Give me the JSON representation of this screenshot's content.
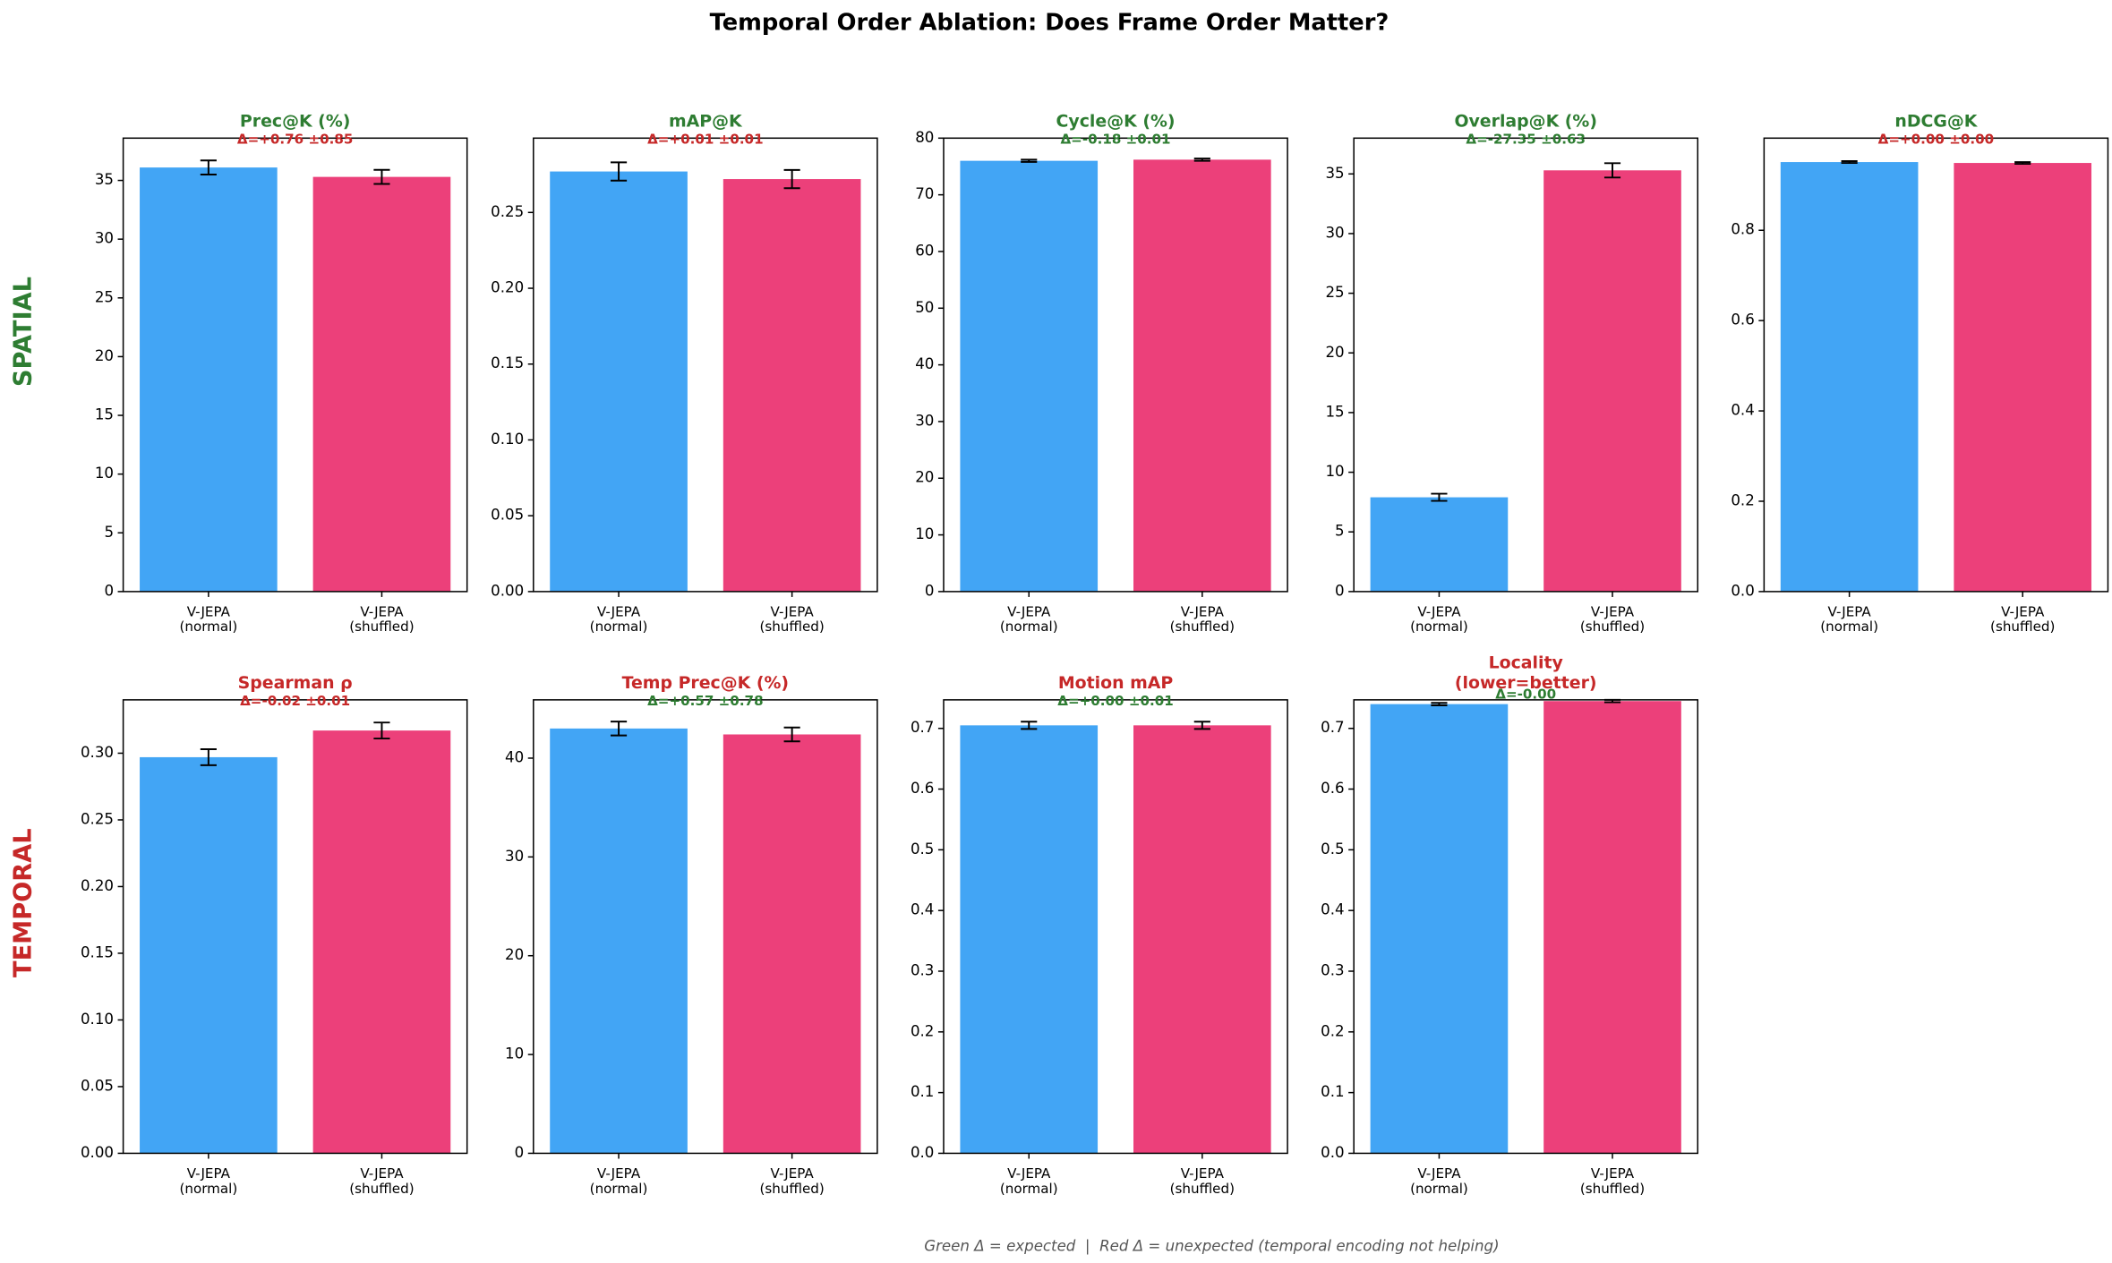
{
  "title": "Temporal Order Ablation: Does Frame Order Matter?",
  "row_labels": [
    {
      "text": "SPATIAL",
      "color": "#2e7d32"
    },
    {
      "text": "TEMPORAL",
      "color": "#c62828"
    }
  ],
  "footnote": "Green Δ = expected  |  Red Δ = unexpected (temporal encoding not helping)",
  "chart_data": [
    {
      "type": "bar",
      "title": [
        "Prec@K (%)"
      ],
      "title_color": "#2e7d32",
      "annotation": "Δ=+0.76 ±0.85",
      "annotation_color": "#c62828",
      "categories": [
        [
          "V-JEPA",
          "(normal)"
        ],
        [
          "V-JEPA",
          "(shuffled)"
        ]
      ],
      "values": [
        36.1,
        35.3
      ],
      "errors": [
        0.6,
        0.6
      ],
      "colors": [
        "#42a5f5",
        "#ec407a"
      ],
      "ylim": [
        0,
        38.6
      ],
      "yticks": [
        0,
        5,
        10,
        15,
        20,
        25,
        30,
        35
      ]
    },
    {
      "type": "bar",
      "title": [
        "mAP@K"
      ],
      "title_color": "#2e7d32",
      "annotation": "Δ=+0.01 ±0.01",
      "annotation_color": "#c62828",
      "categories": [
        [
          "V-JEPA",
          "(normal)"
        ],
        [
          "V-JEPA",
          "(shuffled)"
        ]
      ],
      "values": [
        0.277,
        0.272
      ],
      "errors": [
        0.006,
        0.006
      ],
      "colors": [
        "#42a5f5",
        "#ec407a"
      ],
      "ylim": [
        0,
        0.299
      ],
      "yticks": [
        {
          "value": 0,
          "label": "0.00"
        },
        {
          "value": 0.05,
          "label": "0.05"
        },
        {
          "value": 0.1,
          "label": "0.10"
        },
        {
          "value": 0.15,
          "label": "0.15"
        },
        {
          "value": 0.2,
          "label": "0.20"
        },
        {
          "value": 0.25,
          "label": "0.25"
        }
      ]
    },
    {
      "type": "bar",
      "title": [
        "Cycle@K (%)"
      ],
      "title_color": "#2e7d32",
      "annotation": "Δ=-0.18 ±0.01",
      "annotation_color": "#2e7d32",
      "categories": [
        [
          "V-JEPA",
          "(normal)"
        ],
        [
          "V-JEPA",
          "(shuffled)"
        ]
      ],
      "values": [
        76.0,
        76.2
      ],
      "errors": [
        0.2,
        0.2
      ],
      "colors": [
        "#42a5f5",
        "#ec407a"
      ],
      "ylim": [
        0,
        80
      ],
      "yticks": [
        0,
        10,
        20,
        30,
        40,
        50,
        60,
        70,
        80
      ]
    },
    {
      "type": "bar",
      "title": [
        "Overlap@K (%)"
      ],
      "title_color": "#2e7d32",
      "annotation": "Δ=-27.35 ±0.63",
      "annotation_color": "#2e7d32",
      "categories": [
        [
          "V-JEPA",
          "(normal)"
        ],
        [
          "V-JEPA",
          "(shuffled)"
        ]
      ],
      "values": [
        7.9,
        35.3
      ],
      "errors": [
        0.3,
        0.6
      ],
      "colors": [
        "#42a5f5",
        "#ec407a"
      ],
      "ylim": [
        0,
        38.0
      ],
      "yticks": [
        0,
        5,
        10,
        15,
        20,
        25,
        30,
        35
      ]
    },
    {
      "type": "bar",
      "title": [
        "nDCG@K"
      ],
      "title_color": "#2e7d32",
      "annotation": "Δ=+0.00 ±0.00",
      "annotation_color": "#c62828",
      "categories": [
        [
          "V-JEPA",
          "(normal)"
        ],
        [
          "V-JEPA",
          "(shuffled)"
        ]
      ],
      "values": [
        0.951,
        0.949
      ],
      "errors": [
        0.002,
        0.002
      ],
      "colors": [
        "#42a5f5",
        "#ec407a"
      ],
      "ylim": [
        0,
        1.004
      ],
      "yticks": [
        {
          "value": 0,
          "label": "0.0"
        },
        0.2,
        0.4,
        0.6,
        0.8
      ]
    },
    {
      "type": "bar",
      "title": [
        "Spearman ρ"
      ],
      "title_color": "#c62828",
      "annotation": "Δ=-0.02 ±0.01",
      "annotation_color": "#c62828",
      "categories": [
        [
          "V-JEPA",
          "(normal)"
        ],
        [
          "V-JEPA",
          "(shuffled)"
        ]
      ],
      "values": [
        0.297,
        0.317
      ],
      "errors": [
        0.006,
        0.006
      ],
      "colors": [
        "#42a5f5",
        "#ec407a"
      ],
      "ylim": [
        0,
        0.34
      ],
      "yticks": [
        {
          "value": 0,
          "label": "0.00"
        },
        {
          "value": 0.05,
          "label": "0.05"
        },
        {
          "value": 0.1,
          "label": "0.10"
        },
        {
          "value": 0.15,
          "label": "0.15"
        },
        {
          "value": 0.2,
          "label": "0.20"
        },
        {
          "value": 0.25,
          "label": "0.25"
        },
        {
          "value": 0.3,
          "label": "0.30"
        }
      ]
    },
    {
      "type": "bar",
      "title": [
        "Temp Prec@K (%)"
      ],
      "title_color": "#c62828",
      "annotation": "Δ=+0.57 ±0.78",
      "annotation_color": "#2e7d32",
      "categories": [
        [
          "V-JEPA",
          "(normal)"
        ],
        [
          "V-JEPA",
          "(shuffled)"
        ]
      ],
      "values": [
        43.0,
        42.4
      ],
      "errors": [
        0.7,
        0.7
      ],
      "colors": [
        "#42a5f5",
        "#ec407a"
      ],
      "ylim": [
        0,
        45.9
      ],
      "yticks": [
        0,
        10,
        20,
        30,
        40
      ]
    },
    {
      "type": "bar",
      "title": [
        "Motion mAP"
      ],
      "title_color": "#c62828",
      "annotation": "Δ=+0.00 ±0.01",
      "annotation_color": "#2e7d32",
      "categories": [
        [
          "V-JEPA",
          "(normal)"
        ],
        [
          "V-JEPA",
          "(shuffled)"
        ]
      ],
      "values": [
        0.705,
        0.705
      ],
      "errors": [
        0.006,
        0.006
      ],
      "colors": [
        "#42a5f5",
        "#ec407a"
      ],
      "ylim": [
        0,
        0.747
      ],
      "yticks": [
        {
          "value": 0,
          "label": "0.0"
        },
        0.1,
        0.2,
        0.3,
        0.4,
        0.5,
        0.6,
        0.7
      ]
    },
    {
      "type": "bar",
      "title": [
        "Locality",
        "(lower=better)"
      ],
      "title_color": "#c62828",
      "annotation": "Δ=-0.00",
      "annotation_color": "#2e7d32",
      "categories": [
        [
          "V-JEPA",
          "(normal)"
        ],
        [
          "V-JEPA",
          "(shuffled)"
        ]
      ],
      "values": [
        0.74,
        0.745
      ],
      "errors": [
        0.002,
        0.002
      ],
      "colors": [
        "#42a5f5",
        "#ec407a"
      ],
      "ylim": [
        0,
        0.747
      ],
      "yticks": [
        {
          "value": 0,
          "label": "0.0"
        },
        0.1,
        0.2,
        0.3,
        0.4,
        0.5,
        0.6,
        0.7
      ]
    }
  ]
}
